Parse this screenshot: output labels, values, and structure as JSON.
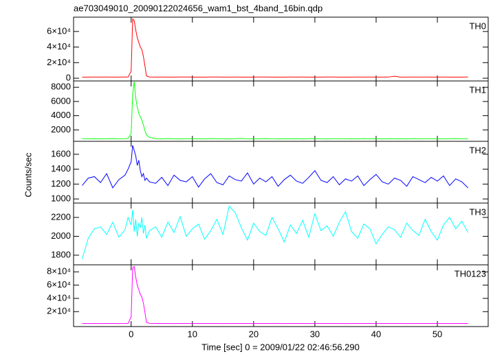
{
  "chart_data": {
    "type": "line",
    "title": "ae703049010_20090122024656_wam1_bst_4band_16bin.qdp",
    "xlabel": "Time [sec] 0 = 2009/01/22 02:46:56.290",
    "ylabel": "Counts/sec",
    "xlim": [
      -9.4,
      58.3
    ],
    "xticks": [
      0,
      10,
      20,
      30,
      40,
      50
    ],
    "x": [
      -8,
      -7,
      -6,
      -5,
      -4,
      -3,
      -2,
      -1,
      -0.5,
      0,
      0.25,
      0.5,
      0.75,
      1,
      1.25,
      1.5,
      1.75,
      2,
      2.25,
      2.5,
      3,
      4,
      5,
      6,
      7,
      8,
      9,
      10,
      11,
      12,
      13,
      14,
      15,
      16,
      17,
      18,
      19,
      20,
      21,
      22,
      23,
      24,
      25,
      26,
      27,
      28,
      29,
      30,
      31,
      32,
      33,
      34,
      35,
      36,
      37,
      38,
      39,
      40,
      41,
      42,
      43,
      44,
      45,
      46,
      47,
      48,
      49,
      50,
      51,
      52,
      53,
      54,
      55
    ],
    "series": [
      {
        "name": "TH0",
        "color": "#ff0000",
        "ylim": [
          -3500,
          78400
        ],
        "yticks": [
          0,
          {
            "value": 20000,
            "label": "2×10⁴"
          },
          {
            "value": 40000,
            "label": "4×10⁴"
          },
          {
            "value": 60000,
            "label": "6×10⁴"
          }
        ],
        "values": [
          1500,
          1480,
          1520,
          1490,
          1510,
          1500,
          1470,
          1530,
          1600,
          9000,
          76000,
          74000,
          62000,
          52000,
          46000,
          40000,
          37000,
          28000,
          16000,
          3000,
          1600,
          1490,
          1520,
          1500,
          1470,
          1510,
          1530,
          1480,
          1500,
          1490,
          1520,
          1510,
          1470,
          1500,
          1530,
          1490,
          1500,
          1480,
          1510,
          1520,
          1500,
          1490,
          1470,
          1510,
          1500,
          1530,
          1480,
          1500,
          1490,
          1520,
          1510,
          1500,
          1480,
          1490,
          1510,
          1500,
          1520,
          1470,
          1500,
          1510,
          2600,
          1500,
          1480,
          1510,
          1500,
          1520,
          1490,
          1500,
          1510,
          1480,
          1500,
          1490,
          1510
        ]
      },
      {
        "name": "TH1",
        "color": "#00ff00",
        "ylim": [
          390,
          8890
        ],
        "yticks": [
          2000,
          4000,
          6000,
          8000
        ],
        "values": [
          760,
          750,
          770,
          740,
          760,
          780,
          750,
          760,
          800,
          1500,
          7000,
          8800,
          6500,
          5200,
          4300,
          3800,
          3400,
          2700,
          1900,
          1300,
          950,
          760,
          740,
          780,
          750,
          730,
          770,
          760,
          750,
          740,
          780,
          760,
          750,
          730,
          770,
          790,
          750,
          740,
          760,
          780,
          750,
          740,
          760,
          750,
          770,
          730,
          760,
          780,
          750,
          740,
          760,
          770,
          750,
          760,
          740,
          780,
          750,
          760,
          730,
          770,
          750,
          760,
          740,
          780,
          750,
          760,
          770,
          740,
          750,
          760,
          780,
          750,
          760
        ]
      },
      {
        "name": "TH2",
        "color": "#0000ff",
        "ylim": [
          945,
          1774
        ],
        "yticks": [
          1000,
          1200,
          1400,
          1600
        ],
        "values": [
          1180,
          1280,
          1300,
          1220,
          1340,
          1150,
          1260,
          1320,
          1400,
          1500,
          1720,
          1650,
          1580,
          1450,
          1520,
          1380,
          1300,
          1340,
          1250,
          1280,
          1230,
          1210,
          1290,
          1180,
          1320,
          1250,
          1230,
          1300,
          1160,
          1270,
          1340,
          1220,
          1190,
          1310,
          1260,
          1240,
          1350,
          1200,
          1280,
          1230,
          1300,
          1170,
          1260,
          1320,
          1240,
          1210,
          1290,
          1380,
          1250,
          1220,
          1300,
          1190,
          1270,
          1240,
          1310,
          1180,
          1260,
          1330,
          1230,
          1200,
          1280,
          1250,
          1170,
          1300,
          1260,
          1220,
          1290,
          1240,
          1310,
          1180,
          1270,
          1230,
          1150
        ]
      },
      {
        "name": "TH3",
        "color": "#00ffff",
        "ylim": [
          1698,
          2352
        ],
        "yticks": [
          1800,
          2000,
          2200
        ],
        "values": [
          1760,
          1980,
          2080,
          2100,
          2020,
          2150,
          1990,
          2070,
          2200,
          2120,
          2280,
          2050,
          2180,
          2000,
          2140,
          2090,
          2200,
          2030,
          2120,
          1980,
          2060,
          2100,
          1990,
          2150,
          2040,
          2210,
          2000,
          2080,
          2130,
          1970,
          2060,
          2180,
          2020,
          2320,
          2250,
          2090,
          1960,
          2140,
          2050,
          2010,
          2200,
          2080,
          1940,
          2120,
          2030,
          2170,
          1990,
          2240,
          2060,
          2110,
          2000,
          2150,
          2260,
          2050,
          1980,
          2130,
          2080,
          1920,
          2020,
          2100,
          2070,
          1990,
          2140,
          2060,
          2010,
          2180,
          2050,
          1960,
          2120,
          2200,
          2080,
          2160,
          2040
        ]
      },
      {
        "name": "TH0123",
        "color": "#ff00ff",
        "ylim": [
          -2500,
          90600
        ],
        "yticks": [
          {
            "value": 20000,
            "label": "2×10⁴"
          },
          {
            "value": 40000,
            "label": "4×10⁴"
          },
          {
            "value": 60000,
            "label": "6×10⁴"
          },
          {
            "value": 80000,
            "label": "8×10⁴"
          }
        ],
        "values": [
          2100,
          2050,
          2120,
          2080,
          2090,
          2110,
          2060,
          2100,
          2300,
          12000,
          86000,
          88000,
          72000,
          60000,
          53000,
          46000,
          42000,
          33000,
          19000,
          4000,
          2300,
          2090,
          2120,
          2100,
          2070,
          2110,
          2130,
          2080,
          2100,
          2090,
          2120,
          2110,
          2070,
          2100,
          2130,
          2090,
          2100,
          2080,
          2110,
          2120,
          2100,
          2090,
          2070,
          2110,
          2100,
          2130,
          2080,
          2100,
          2090,
          2120,
          2110,
          2100,
          2080,
          2090,
          2110,
          2100,
          2120,
          2070,
          2100,
          2110,
          2090,
          2100,
          2080,
          2110,
          2100,
          2120,
          2090,
          2100,
          2110,
          2080,
          2100,
          2090,
          2110
        ]
      }
    ]
  }
}
